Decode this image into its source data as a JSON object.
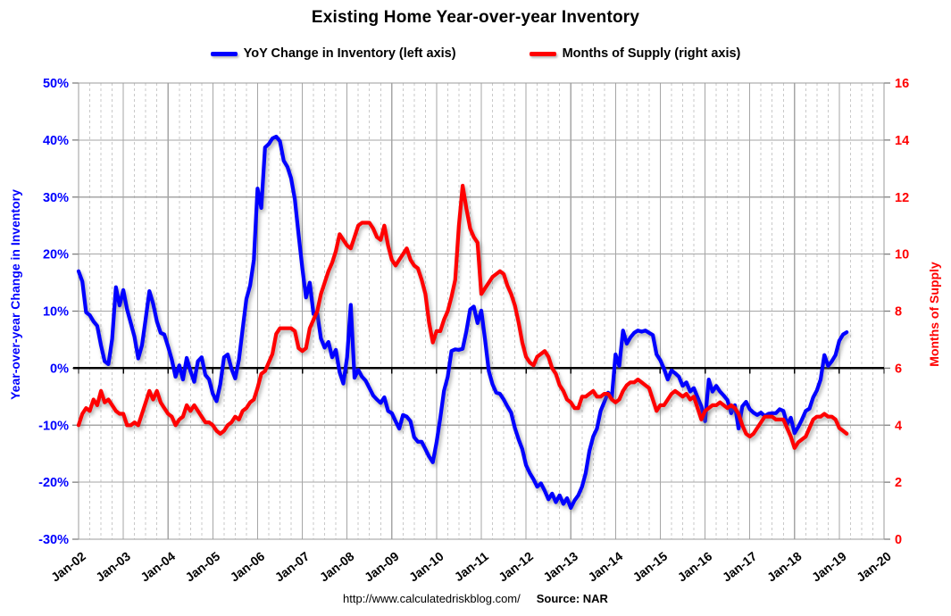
{
  "header": {
    "title": "Existing Home Year-over-year Inventory"
  },
  "legend": [
    {
      "label": "YoY Change in Inventory (left axis)",
      "color": "#0000FF"
    },
    {
      "label": "Months of Supply (right axis)",
      "color": "#FF0000"
    }
  ],
  "footer": {
    "url": "http://www.calculatedriskblog.com/",
    "source_label": "Source: NAR"
  },
  "chart_data": {
    "type": "line",
    "title": "Existing Home Year-over-year Inventory",
    "frequency": "monthly",
    "start_month": "Jan-2002",
    "end_month": "Mar-2019",
    "grid": {
      "year_line_color": "#A6A6A6",
      "quarter_line_color": "#C9C9C9",
      "h_line_color": "#A6A6A6",
      "border_color": "#9B9B9B",
      "zero_line_color": "#000000"
    },
    "x_axis": {
      "tick_labels": [
        "Jan-02",
        "Jan-03",
        "Jan-04",
        "Jan-05",
        "Jan-06",
        "Jan-07",
        "Jan-08",
        "Jan-09",
        "Jan-10",
        "Jan-11",
        "Jan-12",
        "Jan-13",
        "Jan-14",
        "Jan-15",
        "Jan-16",
        "Jan-17",
        "Jan-18",
        "Jan-19",
        "Jan-20"
      ]
    },
    "left_axis": {
      "label": "Year-over-year Change in Inventory",
      "color": "#0000FF",
      "range": [
        -30,
        50
      ],
      "tick_labels": [
        "50%",
        "40%",
        "30%",
        "20%",
        "10%",
        "0%",
        "-10%",
        "-20%",
        "-30%"
      ],
      "tick_values": [
        50,
        40,
        30,
        20,
        10,
        0,
        -10,
        -20,
        -30
      ]
    },
    "right_axis": {
      "label": "Months of Supply",
      "color": "#FF0000",
      "range": [
        0,
        16
      ],
      "tick_labels": [
        "16",
        "14",
        "12",
        "10",
        "8",
        "6",
        "4",
        "2",
        "0"
      ],
      "tick_values": [
        16,
        14,
        12,
        10,
        8,
        6,
        4,
        2,
        0
      ]
    },
    "series": [
      {
        "name": "YoY Change in Inventory (left axis)",
        "axis": "left",
        "color": "#0000FF",
        "unit": "percent",
        "values": [
          17.0,
          15.2,
          9.8,
          9.3,
          8.2,
          7.4,
          4.0,
          1.2,
          0.7,
          5.1,
          14.2,
          11.0,
          13.7,
          10.3,
          7.9,
          5.5,
          1.7,
          4.0,
          8.7,
          13.5,
          11.3,
          8.2,
          6.2,
          5.9,
          3.8,
          1.5,
          -1.5,
          0.5,
          -2.0,
          1.8,
          -0.5,
          -2.4,
          1.2,
          1.9,
          -1.2,
          -2.0,
          -4.5,
          -5.8,
          -2.8,
          1.9,
          2.4,
          -0.1,
          -1.8,
          1.5,
          6.8,
          12.1,
          14.5,
          19.0,
          31.5,
          28.1,
          38.7,
          39.3,
          40.3,
          40.6,
          39.8,
          36.4,
          35.3,
          33.3,
          29.6,
          23.4,
          17.5,
          12.4,
          15.0,
          9.5,
          9.6,
          5.2,
          3.6,
          4.6,
          1.9,
          3.2,
          -0.7,
          -2.7,
          1.9,
          11.1,
          -1.7,
          -0.3,
          -1.5,
          -2.2,
          -3.5,
          -4.8,
          -5.5,
          -6.1,
          -5.1,
          -7.5,
          -7.9,
          -9.3,
          -10.6,
          -8.2,
          -8.5,
          -9.3,
          -12.1,
          -12.9,
          -12.9,
          -14.2,
          -15.5,
          -16.5,
          -13.0,
          -8.7,
          -4.0,
          -1.5,
          3.0,
          3.3,
          3.2,
          3.4,
          6.5,
          10.3,
          10.8,
          7.9,
          10.1,
          5.0,
          -0.5,
          -2.8,
          -4.3,
          -4.5,
          -5.5,
          -6.7,
          -7.8,
          -10.5,
          -12.5,
          -14.2,
          -17.0,
          -18.4,
          -19.5,
          -20.8,
          -20.2,
          -21.5,
          -23.0,
          -22.0,
          -23.5,
          -22.3,
          -23.8,
          -22.8,
          -24.5,
          -23.2,
          -22.3,
          -20.8,
          -18.4,
          -14.5,
          -12.0,
          -10.6,
          -7.5,
          -5.9,
          -4.3,
          -5.1,
          2.4,
          0.4,
          6.6,
          4.3,
          5.4,
          6.2,
          6.6,
          6.4,
          6.6,
          6.2,
          5.8,
          2.4,
          1.4,
          -0.1,
          -2.0,
          -0.4,
          -0.9,
          -1.5,
          -3.1,
          -2.5,
          -4.1,
          -3.5,
          -5.1,
          -6.7,
          -9.3,
          -2.0,
          -4.1,
          -3.1,
          -4.1,
          -4.8,
          -5.6,
          -7.9,
          -6.5,
          -10.6,
          -6.7,
          -5.9,
          -7.2,
          -7.8,
          -8.2,
          -7.8,
          -8.4,
          -8.0,
          -7.9,
          -7.9,
          -7.2,
          -7.5,
          -9.8,
          -8.7,
          -11.4,
          -10.3,
          -9.0,
          -7.5,
          -7.1,
          -5.1,
          -3.9,
          -2.0,
          2.3,
          0.4,
          1.2,
          2.3,
          4.8,
          5.9,
          6.3
        ]
      },
      {
        "name": "Months of Supply (right axis)",
        "axis": "right",
        "color": "#FF0000",
        "unit": "months",
        "values": [
          4.0,
          4.4,
          4.6,
          4.5,
          4.9,
          4.7,
          5.2,
          4.8,
          4.9,
          4.7,
          4.5,
          4.4,
          4.4,
          4.0,
          4.0,
          4.1,
          4.0,
          4.4,
          4.8,
          5.2,
          4.9,
          5.2,
          4.8,
          4.6,
          4.4,
          4.3,
          4.0,
          4.2,
          4.3,
          4.7,
          4.5,
          4.7,
          4.5,
          4.3,
          4.1,
          4.1,
          4.0,
          3.8,
          3.7,
          3.8,
          4.0,
          4.1,
          4.3,
          4.2,
          4.5,
          4.6,
          4.8,
          4.9,
          5.3,
          5.8,
          5.9,
          6.2,
          6.5,
          7.2,
          7.4,
          7.4,
          7.4,
          7.4,
          7.3,
          6.7,
          6.6,
          6.7,
          7.4,
          7.7,
          8.0,
          8.6,
          9.0,
          9.4,
          9.7,
          10.1,
          10.7,
          10.5,
          10.3,
          10.2,
          10.6,
          11.0,
          11.1,
          11.1,
          11.1,
          10.9,
          10.6,
          10.5,
          11.0,
          10.3,
          9.8,
          9.6,
          9.8,
          10.0,
          10.2,
          9.8,
          9.6,
          9.5,
          9.1,
          8.6,
          7.6,
          6.9,
          7.3,
          7.3,
          7.7,
          8.0,
          8.5,
          9.1,
          11.0,
          12.4,
          11.6,
          10.9,
          10.6,
          10.4,
          8.6,
          8.8,
          9.0,
          9.2,
          9.3,
          9.4,
          9.3,
          8.9,
          8.6,
          8.2,
          7.6,
          6.9,
          6.4,
          6.2,
          6.1,
          6.4,
          6.5,
          6.6,
          6.4,
          6.0,
          5.8,
          5.4,
          5.2,
          4.9,
          4.8,
          4.6,
          4.6,
          5.0,
          5.0,
          5.1,
          5.2,
          5.0,
          5.0,
          5.1,
          5.1,
          4.9,
          4.8,
          4.9,
          5.2,
          5.4,
          5.5,
          5.5,
          5.6,
          5.5,
          5.4,
          5.3,
          4.9,
          4.5,
          4.7,
          4.7,
          4.9,
          5.1,
          5.2,
          5.1,
          5.0,
          5.1,
          4.9,
          5.0,
          4.6,
          4.2,
          4.5,
          4.6,
          4.7,
          4.7,
          4.8,
          4.7,
          4.6,
          4.7,
          4.6,
          4.4,
          4.0,
          3.7,
          3.6,
          3.7,
          3.9,
          4.1,
          4.3,
          4.3,
          4.3,
          4.2,
          4.2,
          4.2,
          3.9,
          3.6,
          3.2,
          3.4,
          3.5,
          3.6,
          3.9,
          4.2,
          4.3,
          4.3,
          4.4,
          4.3,
          4.3,
          4.2,
          3.9,
          3.8,
          3.7
        ]
      }
    ]
  }
}
